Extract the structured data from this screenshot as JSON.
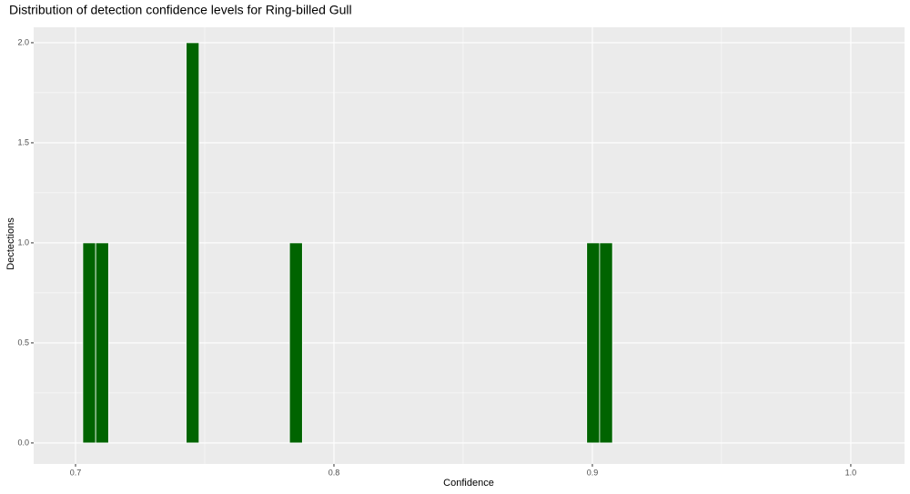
{
  "chart_data": {
    "type": "histogram",
    "title": "Distribution of detection confidence levels for Ring-billed Gull",
    "xlabel": "Confidence",
    "ylabel": "Dectections",
    "bins": [
      0.7028,
      0.7078,
      0.7128,
      0.7178,
      0.7228,
      0.7278,
      0.7328,
      0.7378,
      0.7428,
      0.7478,
      0.7528,
      0.7578,
      0.7628,
      0.7678,
      0.7728,
      0.7778,
      0.7828,
      0.7878,
      0.7928,
      0.7978,
      0.8028,
      0.8078,
      0.8128,
      0.8178,
      0.8228,
      0.8278,
      0.8328,
      0.8378,
      0.8428,
      0.8478,
      0.8528,
      0.8578,
      0.8628,
      0.8678,
      0.8728,
      0.8778,
      0.8828,
      0.8878,
      0.8928,
      0.8978,
      0.9028,
      0.9078
    ],
    "values": [
      1,
      1,
      0,
      0,
      0,
      0,
      0,
      0,
      2,
      0,
      0,
      0,
      0,
      0,
      0,
      0,
      1,
      0,
      0,
      0,
      0,
      0,
      0,
      0,
      0,
      0,
      0,
      0,
      0,
      0,
      0,
      0,
      0,
      0,
      0,
      0,
      0,
      0,
      0,
      1,
      1
    ],
    "color": "#006400",
    "xlim": [
      0.6838,
      1.0208
    ],
    "xticks": [
      0.7,
      0.8,
      0.9,
      {
        "value": 1.0,
        "label": "1.0"
      }
    ],
    "ylim": [
      -0.105,
      2.077
    ],
    "yticks": [
      {
        "value": 0,
        "label": "0.0"
      },
      0.5,
      {
        "value": 1,
        "label": "1.0"
      },
      1.5,
      {
        "value": 2,
        "label": "2.0"
      }
    ],
    "grid": true
  }
}
